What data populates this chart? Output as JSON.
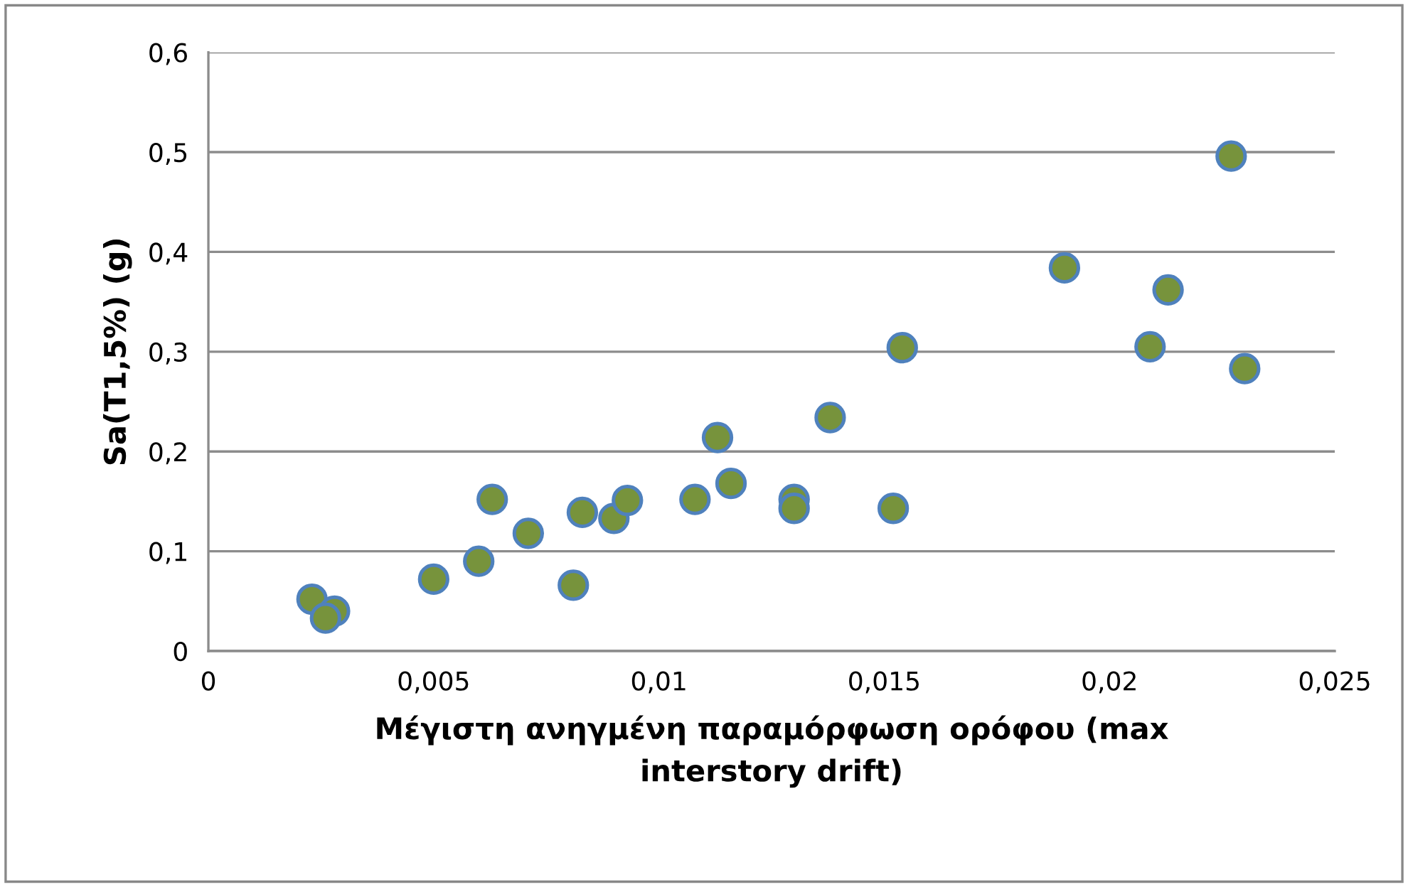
{
  "chart_data": {
    "type": "scatter",
    "xlabel": "Μέγιστη ανηγμένη παραμόρφωση ορόφου (max\ninterstory drift)",
    "ylabel": "Sa(T1,5%) (g)",
    "x": [
      0.0023,
      0.0028,
      0.0026,
      0.005,
      0.006,
      0.0063,
      0.0071,
      0.0081,
      0.0083,
      0.009,
      0.0093,
      0.0108,
      0.0116,
      0.0113,
      0.013,
      0.013,
      0.0138,
      0.0152,
      0.0154,
      0.0227,
      0.019,
      0.0213,
      0.0209,
      0.023
    ],
    "series": [
      {
        "color": "#77933c",
        "values": [
          0.052,
          0.04,
          0.033,
          0.072,
          0.09,
          0.152,
          0.118,
          0.066,
          0.139,
          0.133,
          0.151,
          0.152,
          0.168,
          0.214,
          0.152,
          0.143,
          0.234,
          0.143,
          0.304,
          0.496,
          0.384,
          0.362,
          0.305,
          0.283
        ]
      }
    ],
    "marker": "circle",
    "grid": "y",
    "xlim": [
      0,
      0.025
    ],
    "xticks": [
      0,
      {
        "value": 0.005,
        "label": "0,005"
      },
      {
        "value": 0.01,
        "label": "0,01"
      },
      {
        "value": 0.015,
        "label": "0,015"
      },
      {
        "value": 0.02,
        "label": "0,02"
      },
      {
        "value": 0.025,
        "label": "0,025"
      }
    ],
    "ylim": [
      0,
      0.6
    ],
    "yticks": [
      0,
      {
        "value": 0.1,
        "label": "0,1"
      },
      {
        "value": 0.2,
        "label": "0,2"
      },
      {
        "value": 0.3,
        "label": "0,3"
      },
      {
        "value": 0.4,
        "label": "0,4"
      },
      {
        "value": 0.5,
        "label": "0,5"
      },
      {
        "value": 0.6,
        "label": "0,6"
      }
    ]
  }
}
